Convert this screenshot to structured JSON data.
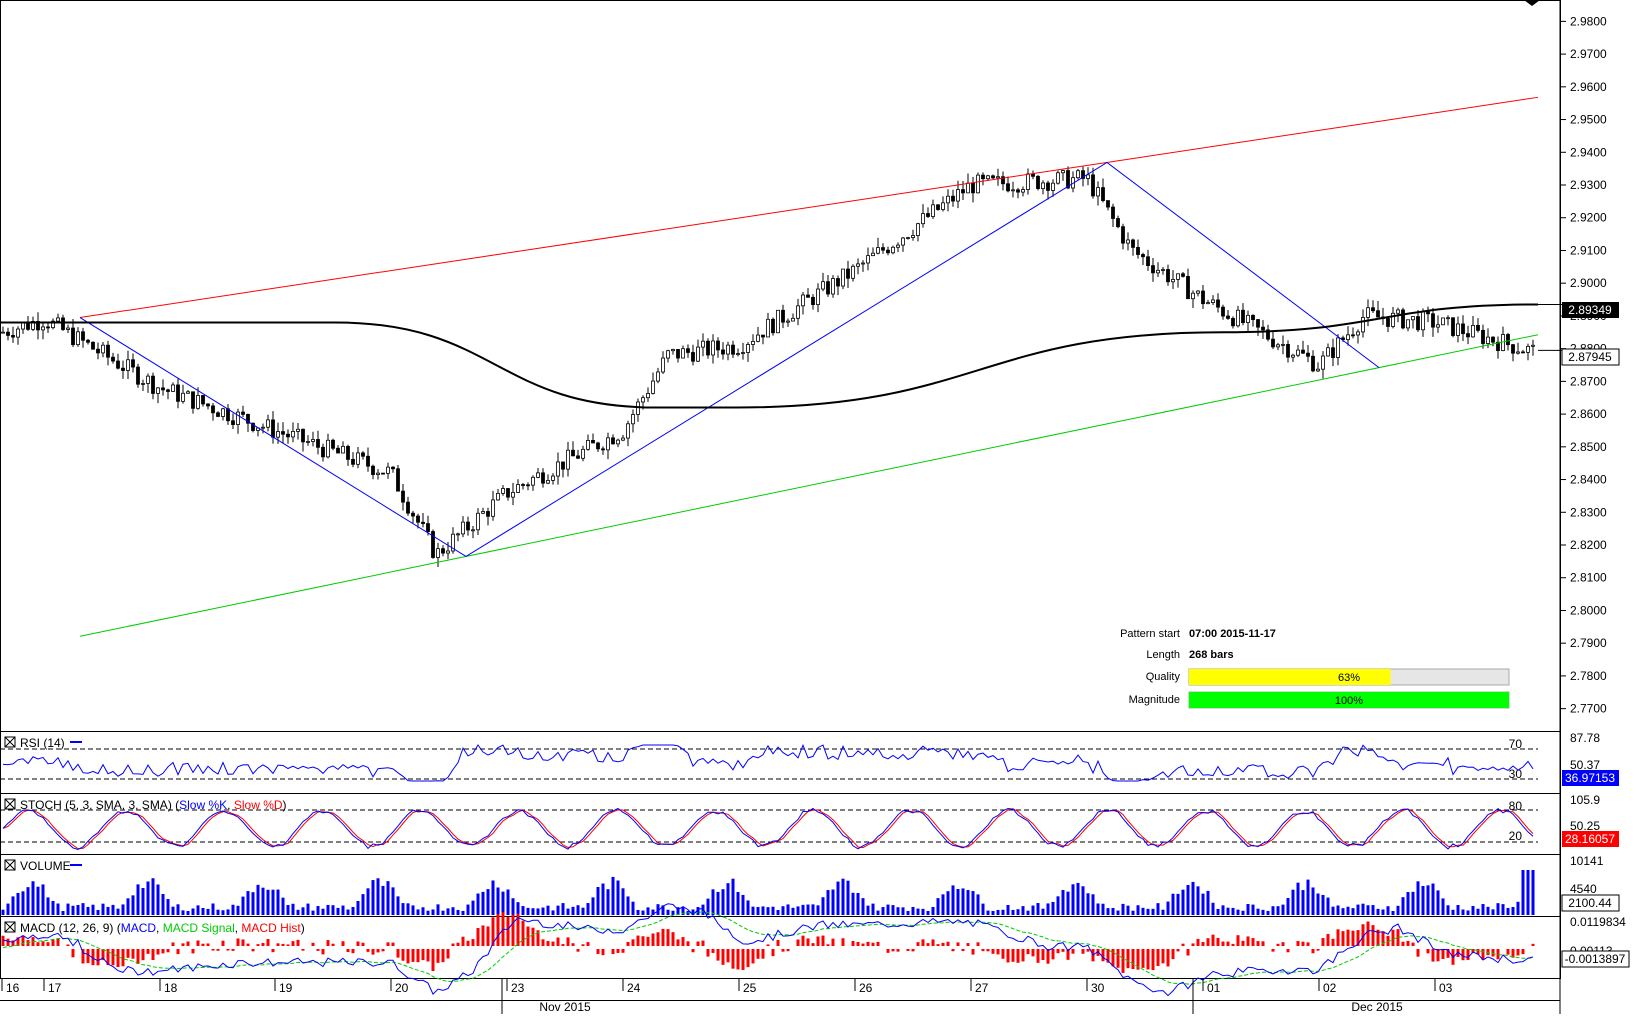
{
  "price_axis": {
    "ticks": [
      "2.9800",
      "2.9700",
      "2.9600",
      "2.9500",
      "2.9400",
      "2.9300",
      "2.9200",
      "2.9100",
      "2.9000",
      "2.8900",
      "2.8800",
      "2.8700",
      "2.8600",
      "2.8500",
      "2.8400",
      "2.8300",
      "2.8200",
      "2.8100",
      "2.8000",
      "2.7900",
      "2.7800",
      "2.7700"
    ],
    "current_price_badge": "2.87945",
    "ma_price_badge": "2.89349"
  },
  "pattern_info": {
    "start_label": "Pattern start",
    "start_value": "07:00 2015-11-17",
    "length_label": "Length",
    "length_value": "268 bars",
    "quality_label": "Quality",
    "quality_value": "63%",
    "quality_fraction": 0.63,
    "magnitude_label": "Magnitude",
    "magnitude_value": "100%",
    "magnitude_fraction": 1.0
  },
  "rsi": {
    "title": "RSI (14)",
    "axis_top": "87.78",
    "axis_mid": "50.37",
    "level_high": "70",
    "level_low": "30",
    "value": "36.97153"
  },
  "stoch": {
    "title_prefix": "STOCH (5, 3, SMA, 3, SMA) (",
    "k_label": "Slow %K",
    "d_label": "Slow %D",
    "title_suffix": ")",
    "axis_top": "105.9",
    "axis_mid": "50.25",
    "level_high": "80",
    "level_low": "20",
    "value": "28.16057"
  },
  "volume": {
    "title": "VOLUME",
    "axis_top": "10141",
    "axis_mid": "4540",
    "value": "2100.44"
  },
  "macd": {
    "title_prefix": "MACD (12, 26, 9) (",
    "macd_label": "MACD",
    "signal_label": "MACD Signal",
    "hist_label": "MACD Hist",
    "title_suffix": ")",
    "axis_top": "0.0119834",
    "axis_mid": "0.00113",
    "value": "-0.0013897"
  },
  "time_axis": {
    "day_labels": [
      "16",
      "17",
      "18",
      "19",
      "20",
      "23",
      "24",
      "25",
      "26",
      "27",
      "30",
      "01",
      "02",
      "03"
    ],
    "month_labels": [
      "Nov 2015",
      "Dec 2015"
    ]
  },
  "colors": {
    "resistance": "#ff0000",
    "support": "#00cc00",
    "zigzag": "#0000ff",
    "ma": "#000000",
    "rsi": "#0000ff",
    "stoch_k": "#0000ff",
    "stoch_d": "#ff0000",
    "volume": "#0000ff",
    "macd": "#0000ff",
    "macd_signal": "#00cc00",
    "macd_hist": "#ff0000",
    "quality_bar": "#ffff00",
    "magnitude_bar": "#00ff00"
  },
  "chart_data": {
    "type": "candlestick",
    "symbol": "",
    "ylim": [
      2.765,
      2.985
    ],
    "x_labels": [
      "16",
      "17",
      "18",
      "19",
      "20",
      "23",
      "24",
      "25",
      "26",
      "27",
      "30",
      "01",
      "02",
      "03"
    ],
    "close_path_keypoints": [
      {
        "time": "16",
        "price": 2.885
      },
      {
        "time": "17",
        "price": 2.889
      },
      {
        "time": "18",
        "price": 2.868
      },
      {
        "time": "19",
        "price": 2.855
      },
      {
        "time": "20",
        "price": 2.842
      },
      {
        "time": "20",
        "price": 2.817
      },
      {
        "time": "23",
        "price": 2.836
      },
      {
        "time": "24",
        "price": 2.855
      },
      {
        "time": "24",
        "price": 2.878
      },
      {
        "time": "25",
        "price": 2.881
      },
      {
        "time": "26",
        "price": 2.904
      },
      {
        "time": "27",
        "price": 2.93
      },
      {
        "time": "30",
        "price": 2.932
      },
      {
        "time": "30",
        "price": 2.91
      },
      {
        "time": "01",
        "price": 2.895
      },
      {
        "time": "02",
        "price": 2.875
      },
      {
        "time": "02",
        "price": 2.89
      },
      {
        "time": "03",
        "price": 2.888
      },
      {
        "time": "03",
        "price": 2.879
      }
    ],
    "channel": {
      "resistance": [
        {
          "time": "17",
          "price": 2.8895
        },
        {
          "time": "30",
          "price": 2.9369
        }
      ],
      "support": [
        {
          "time": "20",
          "price": 2.8165
        },
        {
          "time": "02",
          "price": 2.8742
        }
      ]
    },
    "zigzag": [
      {
        "time": "17",
        "price": 2.8895
      },
      {
        "time": "20",
        "price": 2.8165
      },
      {
        "time": "27",
        "price": 2.9369
      },
      {
        "time": "02",
        "price": 2.8742
      }
    ],
    "moving_average": [
      {
        "time": "16",
        "price": 2.888
      },
      {
        "time": "19",
        "price": 2.888
      },
      {
        "time": "23",
        "price": 2.862
      },
      {
        "time": "26",
        "price": 2.862
      },
      {
        "time": "01",
        "price": 2.885
      },
      {
        "time": "03",
        "price": 2.8935
      }
    ],
    "indicators": {
      "rsi_last": 36.97153,
      "stoch_last": 28.16057,
      "volume_last": 2100.44,
      "macd_last": -0.0013897
    }
  }
}
